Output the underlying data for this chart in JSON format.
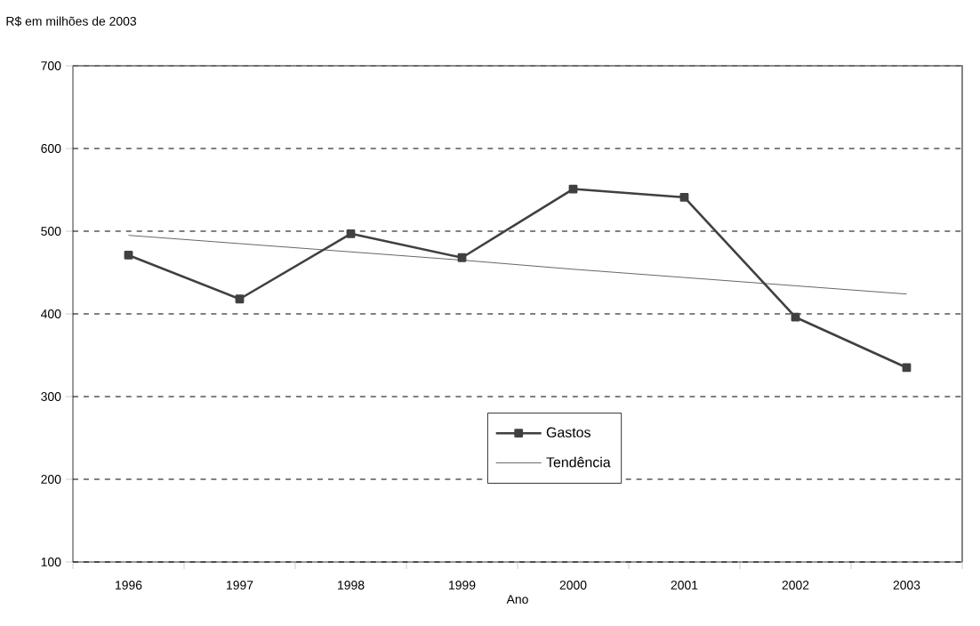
{
  "chart_data": {
    "type": "line",
    "ylabel": "R$ em milhões de 2003",
    "xlabel": "Ano",
    "categories": [
      "1996",
      "1997",
      "1998",
      "1999",
      "2000",
      "2001",
      "2002",
      "2003"
    ],
    "series": [
      {
        "name": "Gastos",
        "color": "#404040",
        "marker": "square",
        "values": [
          471,
          418,
          497,
          468,
          551,
          541,
          396,
          335
        ]
      },
      {
        "name": "Tendência",
        "color": "#404040",
        "marker": "none",
        "values": [
          495,
          485,
          475,
          465,
          454,
          444,
          434,
          424
        ]
      }
    ],
    "ylim": [
      100,
      700
    ],
    "yticks": [
      100,
      200,
      300,
      400,
      500,
      600,
      700
    ],
    "grid": "y",
    "legend": "bottom"
  }
}
